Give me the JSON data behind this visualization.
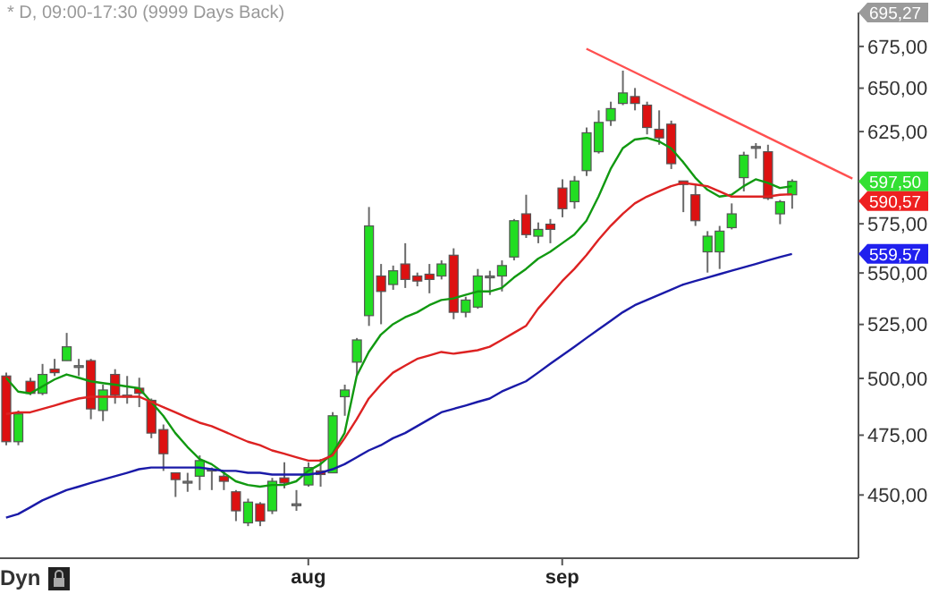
{
  "chart_data": {
    "type": "candlestick",
    "title": "* D, 09:00-17:30 (9999 Days Back)",
    "categories": [
      null,
      null,
      null,
      null,
      null,
      null,
      null,
      null,
      null,
      null,
      null,
      null,
      null,
      null,
      null,
      null,
      null,
      null,
      null,
      null,
      null,
      null,
      null,
      null,
      null,
      "aug",
      null,
      null,
      null,
      null,
      null,
      null,
      null,
      null,
      null,
      null,
      null,
      null,
      null,
      null,
      null,
      null,
      null,
      null,
      null,
      null,
      "sep",
      null,
      null,
      null,
      null,
      null,
      null,
      null,
      null,
      null,
      null,
      null,
      null,
      null,
      null,
      null,
      null,
      null,
      null,
      null,
      null,
      null,
      null,
      null,
      null
    ],
    "ohlc": [
      [
        501.1,
        502.6,
        470.7,
        472.2
      ],
      [
        472.2,
        485.7,
        470.7,
        484.2
      ],
      [
        498.7,
        500.3,
        492.5,
        493.3
      ],
      [
        493.3,
        506.6,
        492.5,
        501.8
      ],
      [
        504.2,
        508.9,
        501.1,
        502.6
      ],
      [
        508.1,
        521.0,
        508.1,
        514.5
      ],
      [
        505.8,
        508.9,
        501.1,
        505.8
      ],
      [
        508.1,
        508.9,
        481.9,
        486.4
      ],
      [
        485.7,
        497.2,
        481.1,
        494.8
      ],
      [
        501.8,
        504.2,
        488.7,
        492.5
      ],
      [
        492.5,
        501.1,
        488.7,
        492.5
      ],
      [
        495.6,
        500.3,
        487.2,
        493.3
      ],
      [
        490.2,
        491.0,
        473.7,
        475.9
      ],
      [
        477.4,
        479.6,
        459.9,
        467.1
      ],
      [
        459.1,
        459.1,
        449.2,
        456.3
      ],
      [
        455.6,
        459.1,
        451.3,
        455.6
      ],
      [
        457.7,
        466.4,
        452.0,
        464.2
      ],
      [
        460.6,
        461.3,
        452.0,
        460.6
      ],
      [
        457.7,
        459.9,
        452.0,
        455.6
      ],
      [
        451.3,
        452.0,
        439.5,
        443.6
      ],
      [
        438.8,
        448.5,
        437.5,
        447.1
      ],
      [
        446.4,
        447.1,
        437.5,
        439.5
      ],
      [
        443.6,
        457.0,
        442.3,
        455.6
      ],
      [
        457.0,
        463.5,
        452.7,
        454.9
      ],
      [
        446.4,
        452.0,
        443.6,
        446.4
      ],
      [
        454.1,
        463.5,
        453.4,
        461.3
      ],
      [
        459.9,
        464.9,
        453.4,
        458.4
      ],
      [
        459.1,
        485.0,
        459.1,
        483.4
      ],
      [
        491.8,
        497.2,
        483.4,
        494.8
      ],
      [
        507.4,
        518.6,
        501.1,
        517.7
      ],
      [
        529.2,
        583.8,
        524.3,
        573.9
      ],
      [
        548.5,
        554.5,
        525.1,
        540.9
      ],
      [
        544.3,
        553.7,
        541.7,
        551.1
      ],
      [
        554.5,
        565.0,
        542.6,
        546.8
      ],
      [
        548.5,
        550.2,
        543.4,
        546.0
      ],
      [
        549.4,
        554.5,
        540.0,
        546.8
      ],
      [
        548.5,
        556.3,
        546.8,
        554.5
      ],
      [
        558.9,
        562.4,
        527.5,
        530.8
      ],
      [
        530.8,
        538.3,
        528.4,
        536.7
      ],
      [
        533.3,
        552.0,
        532.5,
        548.5
      ],
      [
        548.5,
        551.1,
        539.2,
        548.5
      ],
      [
        548.5,
        556.3,
        540.9,
        553.7
      ],
      [
        558.0,
        577.5,
        556.3,
        576.6
      ],
      [
        580.2,
        590.3,
        567.7,
        569.4
      ],
      [
        568.6,
        575.7,
        565.0,
        572.1
      ],
      [
        574.8,
        577.5,
        565.0,
        572.1
      ],
      [
        593.9,
        598.6,
        578.4,
        582.9
      ],
      [
        586.6,
        600.4,
        582.9,
        597.7
      ],
      [
        603.3,
        627.3,
        600.4,
        624.3
      ],
      [
        613.7,
        637.1,
        612.7,
        630.2
      ],
      [
        631.2,
        642.1,
        628.2,
        638.1
      ],
      [
        641.1,
        660.4,
        640.1,
        647.2
      ],
      [
        645.1,
        650.1,
        637.1,
        641.1
      ],
      [
        640.1,
        642.1,
        623.4,
        627.3
      ],
      [
        626.3,
        637.1,
        617.6,
        621.4
      ],
      [
        629.2,
        631.2,
        604.2,
        607.1
      ],
      [
        597.7,
        597.7,
        581.1,
        595.8
      ],
      [
        590.3,
        595.8,
        573.9,
        576.6
      ],
      [
        560.6,
        571.2,
        550.2,
        568.6
      ],
      [
        560.6,
        573.9,
        552.0,
        571.2
      ],
      [
        573.0,
        585.7,
        572.1,
        580.2
      ],
      [
        599.5,
        613.7,
        592.1,
        611.8
      ],
      [
        616.6,
        618.5,
        609.9,
        616.6
      ],
      [
        613.7,
        617.6,
        587.5,
        588.4
      ],
      [
        580.2,
        587.5,
        574.8,
        586.6
      ],
      [
        590.3,
        598.6,
        582.9,
        597.5
      ],
      null,
      null,
      null,
      null,
      null
    ],
    "colors": [
      "#dd1111",
      "#22dd22",
      "#dd1111",
      "#22dd22",
      "#dd1111",
      "#22dd22",
      "#808080",
      "#dd1111",
      "#22dd22",
      "#dd1111",
      "#808080",
      "#dd1111",
      "#dd1111",
      "#dd1111",
      "#dd1111",
      "#808080",
      "#22dd22",
      "#808080",
      "#dd1111",
      "#dd1111",
      "#22dd22",
      "#dd1111",
      "#22dd22",
      "#dd1111",
      "#808080",
      "#22dd22",
      "#dd1111",
      "#22dd22",
      "#22dd22",
      "#22dd22",
      "#22dd22",
      "#dd1111",
      "#22dd22",
      "#dd1111",
      "#dd1111",
      "#dd1111",
      "#22dd22",
      "#dd1111",
      "#22dd22",
      "#22dd22",
      "#808080",
      "#22dd22",
      "#22dd22",
      "#dd1111",
      "#22dd22",
      "#dd1111",
      "#dd1111",
      "#22dd22",
      "#22dd22",
      "#22dd22",
      "#22dd22",
      "#22dd22",
      "#dd1111",
      "#dd1111",
      "#dd1111",
      "#dd1111",
      "#dd1111",
      "#dd1111",
      "#22dd22",
      "#22dd22",
      "#22dd22",
      "#22dd22",
      "#808080",
      "#dd1111",
      "#22dd22",
      "#22dd22",
      null,
      null,
      null,
      null,
      null
    ],
    "series": [
      {
        "type": "line",
        "color": "#119911",
        "values": [
          500.3,
          494.1,
          493.3,
          496.4,
          499.5,
          501.8,
          500.3,
          498.7,
          497.9,
          497.2,
          496.4,
          495.6,
          489.5,
          483.4,
          475.9,
          470.0,
          464.9,
          462.7,
          459.1,
          455.6,
          454.1,
          453.4,
          454.1,
          454.1,
          455.6,
          459.9,
          462.7,
          467.1,
          475.9,
          501.1,
          512.1,
          520.2,
          525.1,
          528.4,
          530.8,
          534.2,
          536.7,
          537.5,
          539.2,
          540.9,
          540.9,
          542.6,
          547.7,
          552.0,
          557.1,
          560.6,
          565.0,
          569.4,
          576.6,
          589.3,
          604.2,
          615.6,
          620.5,
          621.4,
          619.5,
          615.6,
          608.0,
          599.5,
          593.0,
          589.3,
          590.3,
          594.9,
          598.6,
          596.7,
          593.9,
          594.9,
          null,
          null,
          null,
          null,
          null
        ]
      },
      {
        "type": "line",
        "color": "#dd2222",
        "values": [
          484.2,
          484.9,
          484.9,
          486.4,
          487.9,
          489.5,
          491.0,
          491.8,
          491.8,
          491.8,
          491.8,
          491.8,
          489.5,
          487.2,
          484.9,
          482.6,
          480.4,
          478.9,
          476.7,
          474.4,
          472.2,
          470.7,
          468.5,
          467.1,
          465.6,
          464.2,
          464.2,
          466.4,
          473.7,
          481.9,
          491.0,
          497.2,
          502.6,
          505.8,
          508.9,
          510.5,
          512.1,
          511.3,
          512.1,
          512.9,
          514.5,
          517.7,
          521.0,
          524.3,
          532.5,
          539.2,
          546.0,
          552.0,
          558.9,
          566.8,
          573.9,
          580.2,
          585.7,
          589.3,
          592.1,
          594.9,
          596.7,
          595.8,
          594.9,
          592.1,
          589.3,
          589.3,
          589.3,
          589.3,
          590.3,
          590.57,
          null,
          null,
          null,
          null,
          null
        ]
      },
      {
        "type": "line",
        "color": "#1a1aa8",
        "values": [
          440.9,
          442.3,
          445.0,
          447.8,
          449.9,
          452.0,
          453.4,
          454.9,
          456.3,
          457.7,
          459.1,
          460.6,
          461.3,
          461.3,
          461.3,
          461.3,
          461.3,
          460.6,
          459.9,
          459.9,
          459.1,
          459.1,
          458.4,
          458.4,
          458.4,
          458.4,
          459.1,
          460.6,
          462.7,
          465.6,
          468.5,
          470.7,
          473.7,
          475.9,
          478.9,
          481.9,
          484.9,
          486.4,
          487.9,
          489.5,
          491.0,
          494.1,
          496.4,
          498.7,
          502.6,
          506.6,
          510.5,
          514.5,
          518.6,
          522.6,
          526.7,
          530.8,
          534.2,
          536.7,
          539.2,
          541.7,
          544.3,
          546.0,
          547.7,
          549.4,
          551.1,
          552.8,
          554.5,
          556.3,
          558.0,
          559.57,
          null,
          null,
          null,
          null,
          null
        ]
      },
      {
        "type": "line",
        "color": "#ff5050",
        "values": [
          null,
          null,
          null,
          null,
          null,
          null,
          null,
          null,
          null,
          null,
          null,
          null,
          null,
          null,
          null,
          null,
          null,
          null,
          null,
          null,
          null,
          null,
          null,
          null,
          null,
          null,
          null,
          null,
          null,
          null,
          null,
          null,
          null,
          null,
          null,
          null,
          null,
          null,
          null,
          null,
          null,
          null,
          null,
          null,
          null,
          null,
          null,
          null,
          673.6,
          null,
          null,
          null,
          null,
          null,
          null,
          null,
          null,
          null,
          null,
          null,
          null,
          null,
          null,
          null,
          null,
          null,
          null,
          null,
          null,
          null,
          599.0
        ]
      }
    ],
    "ylim": [
      425,
      696
    ],
    "log": "y",
    "yticks": [
      {
        "value": 450,
        "label": "450,00"
      },
      {
        "value": 475,
        "label": "475,00"
      },
      {
        "value": 500,
        "label": "500,00"
      },
      {
        "value": 525,
        "label": "525,00"
      },
      {
        "value": 550,
        "label": "550,00"
      },
      {
        "value": 575,
        "label": "575,00"
      },
      {
        "value": 625,
        "label": "625,00"
      },
      {
        "value": 650,
        "label": "650,00"
      },
      {
        "value": 675,
        "label": "675,00"
      }
    ],
    "annotations": [
      "695,27",
      "597,50",
      "590,57",
      "559,57",
      "Dyn"
    ]
  }
}
